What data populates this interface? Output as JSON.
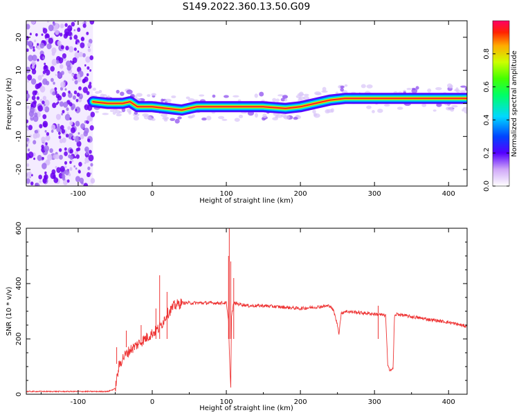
{
  "title": "S149.2022.360.13.50.G09",
  "chart_data": [
    {
      "type": "heatmap",
      "xlabel": "Height of straight line (km)",
      "ylabel": "Frequency (Hz)",
      "xlim": [
        -170,
        425
      ],
      "ylim": [
        -25,
        25
      ],
      "xticks": [
        -100,
        0,
        100,
        200,
        300,
        400
      ],
      "yticks": [
        -20,
        -10,
        0,
        10,
        20
      ],
      "noise_region_x": [
        -170,
        -80
      ],
      "ridge": {
        "x": [
          -80,
          -60,
          -40,
          -30,
          -20,
          0,
          20,
          40,
          60,
          100,
          150,
          180,
          200,
          220,
          240,
          260,
          300,
          350,
          400,
          425
        ],
        "freq": [
          0.5,
          0,
          0,
          0.5,
          -1,
          -1,
          -1.5,
          -2,
          -1,
          -1,
          -1,
          -1.5,
          -1,
          0,
          1,
          1.5,
          1.5,
          1.5,
          1.5,
          1.5
        ]
      },
      "colorbar": {
        "label": "Normalized spectral amplitude",
        "ticks": [
          0.0,
          0.2,
          0.4,
          0.6,
          0.8
        ],
        "range": [
          0,
          1
        ]
      }
    },
    {
      "type": "line",
      "xlabel": "Height of straight line (km)",
      "ylabel": "SNR (10 * v/v)",
      "xlim": [
        -170,
        425
      ],
      "ylim": [
        0,
        600
      ],
      "xticks": [
        -100,
        0,
        100,
        200,
        300,
        400
      ],
      "yticks": [
        0,
        200,
        400,
        600
      ],
      "color": "#ee3333",
      "series": [
        {
          "x": [
            -170,
            -100,
            -60,
            -50,
            -45,
            -40,
            -30,
            -20,
            -10,
            0,
            10,
            20,
            30,
            40,
            50,
            60,
            80,
            100,
            103,
            105,
            106,
            107,
            110,
            130,
            150,
            200,
            240,
            245,
            250,
            252,
            255,
            260,
            300,
            315,
            318,
            320,
            325,
            327,
            330,
            350,
            400,
            425
          ],
          "y": [
            10,
            10,
            10,
            20,
            100,
            130,
            160,
            180,
            200,
            220,
            240,
            290,
            320,
            330,
            330,
            330,
            330,
            330,
            260,
            80,
            30,
            280,
            330,
            320,
            320,
            310,
            320,
            300,
            250,
            220,
            290,
            300,
            290,
            285,
            100,
            90,
            90,
            280,
            290,
            280,
            260,
            245
          ]
        }
      ],
      "spikes": [
        {
          "x": -48,
          "y": 170
        },
        {
          "x": -35,
          "y": 230
        },
        {
          "x": -15,
          "y": 250
        },
        {
          "x": 5,
          "y": 310
        },
        {
          "x": 10,
          "y": 430
        },
        {
          "x": 20,
          "y": 370
        },
        {
          "x": 103,
          "y": 500
        },
        {
          "x": 104,
          "y": 600
        },
        {
          "x": 106,
          "y": 480
        },
        {
          "x": 110,
          "y": 420
        },
        {
          "x": 305,
          "y": 320
        }
      ]
    }
  ]
}
